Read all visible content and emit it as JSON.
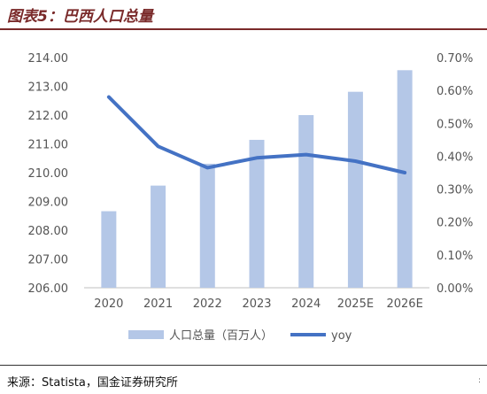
{
  "title": "图表5：巴西人口总量",
  "source": "来源：Statista，国金证券研究所",
  "corner_mark": ":",
  "colors": {
    "bar": "#b4c7e7",
    "line": "#4472c4",
    "title": "#7a2a2a"
  },
  "chart_data": {
    "type": "bar",
    "categories": [
      "2020",
      "2021",
      "2022",
      "2023",
      "2024",
      "2025E",
      "2026E"
    ],
    "series": [
      {
        "name": "人口总量（百万人）",
        "type": "bar",
        "axis": "left",
        "values": [
          208.66,
          209.55,
          210.31,
          211.14,
          212.0,
          212.81,
          213.56
        ]
      },
      {
        "name": "yoy",
        "type": "line",
        "axis": "right",
        "values": [
          0.58,
          0.43,
          0.365,
          0.395,
          0.405,
          0.385,
          0.35
        ]
      }
    ],
    "y_left": {
      "lim": [
        206.0,
        214.0
      ],
      "ticks": [
        "206.00",
        "207.00",
        "208.00",
        "209.00",
        "210.00",
        "211.00",
        "212.00",
        "213.00",
        "214.00"
      ]
    },
    "y_right": {
      "lim": [
        0.0,
        0.7
      ],
      "ticks": [
        "0.00%",
        "0.10%",
        "0.20%",
        "0.30%",
        "0.40%",
        "0.50%",
        "0.60%",
        "0.70%"
      ]
    },
    "legend_position": "bottom",
    "grid": false
  }
}
